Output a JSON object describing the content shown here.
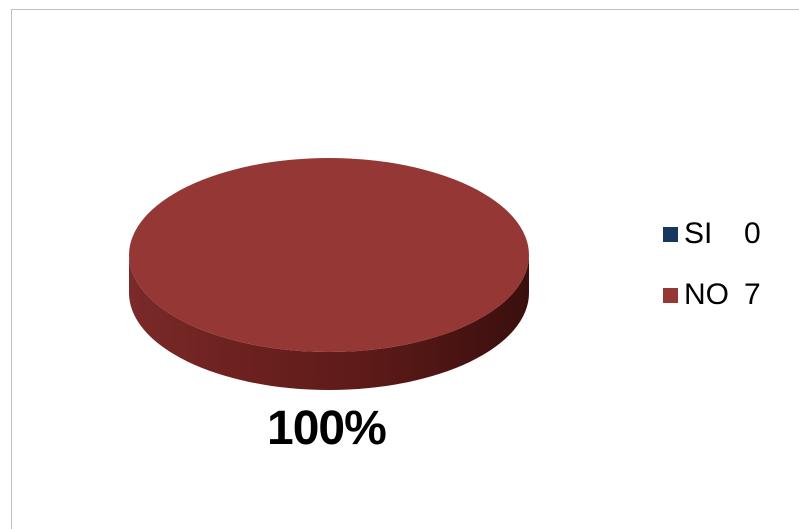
{
  "chart_data": {
    "type": "pie",
    "title": "",
    "categories": [
      "SI",
      "NO"
    ],
    "values": [
      0,
      7
    ],
    "series": [
      {
        "label": "SI",
        "value": 0,
        "color": "#17375E"
      },
      {
        "label": "NO",
        "value": 7,
        "color": "#953735"
      }
    ],
    "data_labels": [
      "100%"
    ],
    "legend": {
      "position": "right",
      "entries": [
        {
          "name": "SI",
          "value": "0",
          "color": "#17375E"
        },
        {
          "name": "NO",
          "value": "7",
          "color": "#953735"
        }
      ]
    },
    "style": "3d"
  }
}
